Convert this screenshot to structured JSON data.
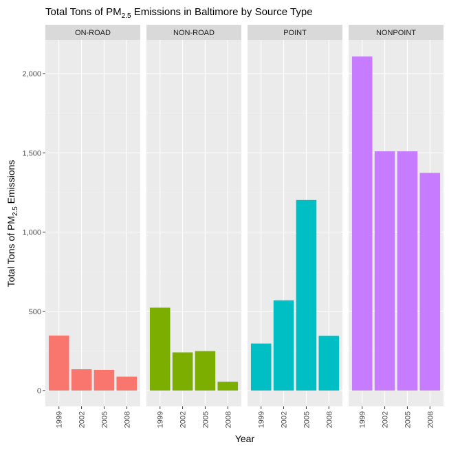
{
  "chart_data": {
    "type": "bar",
    "title": {
      "prefix": "Total Tons of PM",
      "subscript": "2.5",
      "suffix": " Emissions in Baltimore by Source Type"
    },
    "xlabel": "Year",
    "ylabel": {
      "prefix": "Total Tons of PM",
      "subscript": "2.5",
      "suffix": " Emissions"
    },
    "categories": [
      "1999",
      "2002",
      "2005",
      "2008"
    ],
    "ylim": [
      0,
      2215
    ],
    "yticks": [
      0,
      500,
      1000,
      1500,
      2000
    ],
    "ytick_labels": [
      "0",
      "500",
      "1,000",
      "1,500",
      "2,000"
    ],
    "grid": true,
    "legend": "none",
    "facets": [
      {
        "name": "ON-ROAD",
        "color": "#F8766D",
        "values": [
          346.8,
          134.3,
          130.4,
          88.3
        ]
      },
      {
        "name": "NON-ROAD",
        "color": "#7CAE00",
        "values": [
          522.9,
          240.8,
          248.9,
          55.8
        ]
      },
      {
        "name": "POINT",
        "color": "#00BFC4",
        "values": [
          296.8,
          569.3,
          1202.5,
          345.0
        ]
      },
      {
        "name": "NONPOINT",
        "color": "#C77CFF",
        "values": [
          2107.6,
          1509.5,
          1509.5,
          1373.2
        ]
      }
    ]
  }
}
